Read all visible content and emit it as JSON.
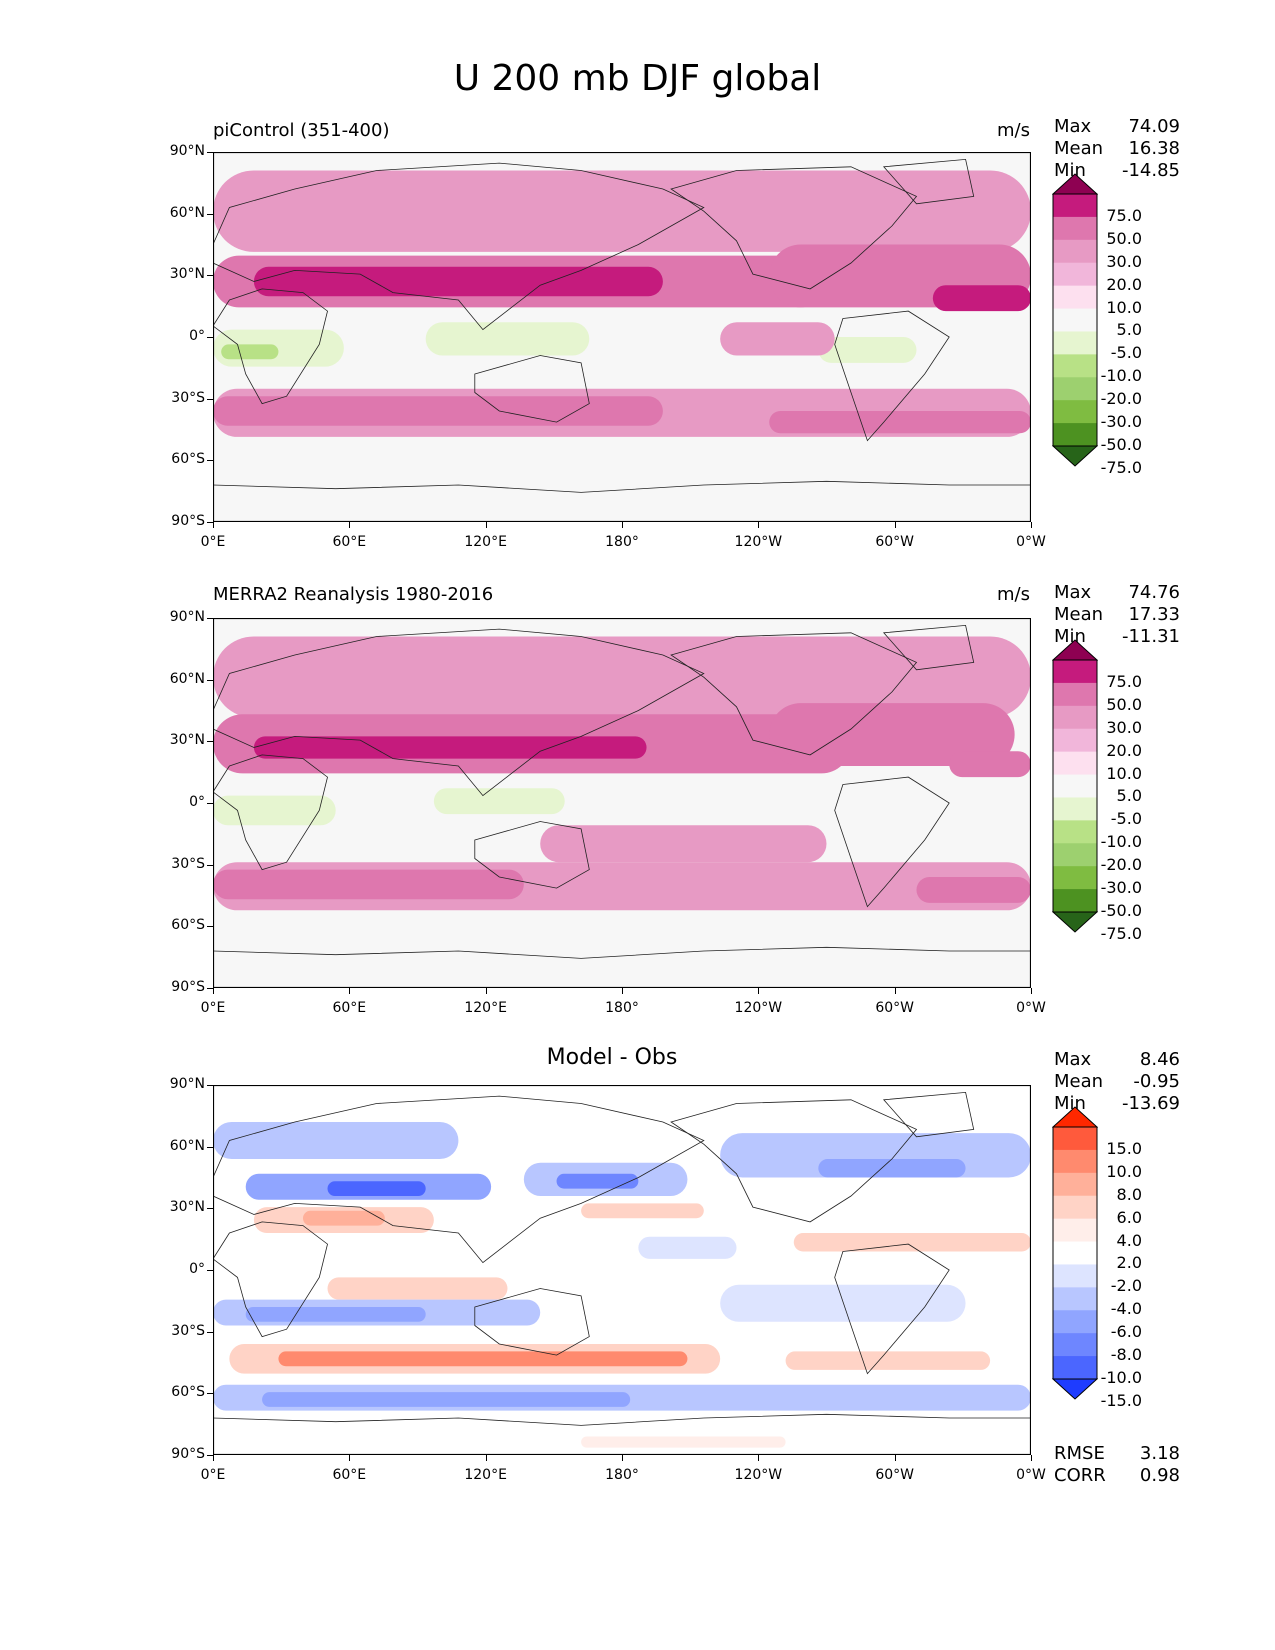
{
  "figure": {
    "title": "U 200 mb DJF global"
  },
  "axes": {
    "lat_ticks": [
      "90°N",
      "60°N",
      "30°N",
      "0°",
      "30°S",
      "60°S",
      "90°S"
    ],
    "lon_ticks": [
      "0°E",
      "60°E",
      "120°E",
      "180°",
      "120°W",
      "60°W",
      "0°W"
    ]
  },
  "panels": [
    {
      "id": "test",
      "left_title": "piControl (351-400)",
      "center_title": "",
      "units": "m/s",
      "stats": [
        {
          "label": "Max",
          "value": "74.09"
        },
        {
          "label": "Mean",
          "value": "16.38"
        },
        {
          "label": "Min",
          "value": "-14.85"
        }
      ],
      "colorbar": {
        "labels": [
          "75.0",
          "50.0",
          "30.0",
          "20.0",
          "10.0",
          "5.0",
          "-5.0",
          "-10.0",
          "-20.0",
          "-30.0",
          "-50.0",
          "-75.0"
        ],
        "colors": [
          "#8e0152",
          "#c51b7d",
          "#de77ae",
          "#e79ac4",
          "#f1b6da",
          "#fde0ef",
          "#f7f7f7",
          "#e6f5d0",
          "#b8e186",
          "#9dd06f",
          "#7fbc41",
          "#4d9221",
          "#276419"
        ]
      }
    },
    {
      "id": "ref",
      "left_title": "MERRA2 Reanalysis 1980-2016",
      "center_title": "",
      "units": "m/s",
      "stats": [
        {
          "label": "Max",
          "value": "74.76"
        },
        {
          "label": "Mean",
          "value": "17.33"
        },
        {
          "label": "Min",
          "value": "-11.31"
        }
      ],
      "colorbar": {
        "labels": [
          "75.0",
          "50.0",
          "30.0",
          "20.0",
          "10.0",
          "5.0",
          "-5.0",
          "-10.0",
          "-20.0",
          "-30.0",
          "-50.0",
          "-75.0"
        ],
        "colors": [
          "#8e0152",
          "#c51b7d",
          "#de77ae",
          "#e79ac4",
          "#f1b6da",
          "#fde0ef",
          "#f7f7f7",
          "#e6f5d0",
          "#b8e186",
          "#9dd06f",
          "#7fbc41",
          "#4d9221",
          "#276419"
        ]
      }
    },
    {
      "id": "diff",
      "left_title": "",
      "center_title": "Model - Obs",
      "units": "",
      "stats": [
        {
          "label": "Max",
          "value": "8.46"
        },
        {
          "label": "Mean",
          "value": "-0.95"
        },
        {
          "label": "Min",
          "value": "-13.69"
        }
      ],
      "extra_stats": [
        {
          "label": "RMSE",
          "value": "3.18"
        },
        {
          "label": "CORR",
          "value": "0.98"
        }
      ],
      "colorbar": {
        "labels": [
          "15.0",
          "10.0",
          "8.0",
          "6.0",
          "4.0",
          "2.0",
          "-2.0",
          "-4.0",
          "-6.0",
          "-8.0",
          "-10.0",
          "-15.0"
        ],
        "colors": [
          "#ff2800",
          "#ff5a3c",
          "#ff8a6e",
          "#ffb09a",
          "#ffd3c6",
          "#ffeeea",
          "#ffffff",
          "#dde4ff",
          "#b8c6ff",
          "#90a5ff",
          "#6e86ff",
          "#4b66ff",
          "#1e3cff"
        ]
      }
    }
  ]
}
